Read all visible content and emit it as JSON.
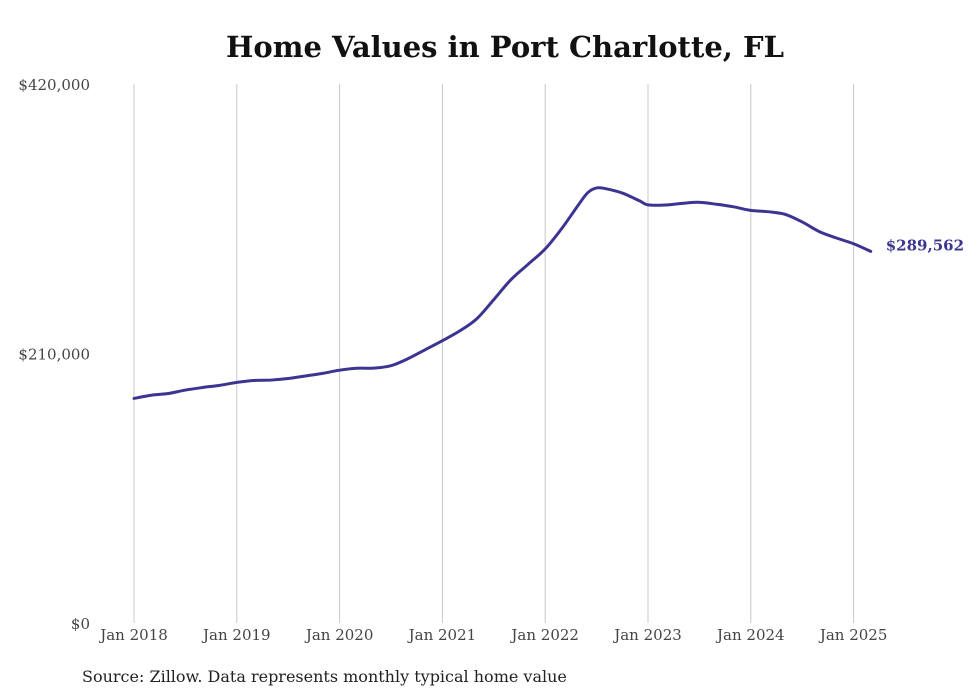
{
  "chart_data": {
    "type": "line",
    "title": "Home Values in Port Charlotte, FL",
    "xlabel": "",
    "ylabel": "",
    "ylim": [
      0,
      420000
    ],
    "y_ticks": [
      {
        "value": 0,
        "label": "$0"
      },
      {
        "value": 210000,
        "label": "$210,000"
      },
      {
        "value": 420000,
        "label": "$420,000"
      }
    ],
    "x_ticks": [
      {
        "value": "2018-01",
        "label": "Jan 2018"
      },
      {
        "value": "2019-01",
        "label": "Jan 2019"
      },
      {
        "value": "2020-01",
        "label": "Jan 2020"
      },
      {
        "value": "2021-01",
        "label": "Jan 2021"
      },
      {
        "value": "2022-01",
        "label": "Jan 2022"
      },
      {
        "value": "2023-01",
        "label": "Jan 2023"
      },
      {
        "value": "2024-01",
        "label": "Jan 2024"
      },
      {
        "value": "2025-01",
        "label": "Jan 2025"
      }
    ],
    "grid": {
      "vertical": true,
      "horizontal": false
    },
    "series": [
      {
        "color": "#3b3591",
        "points": [
          [
            "2018-01",
            175000
          ],
          [
            "2018-03",
            177500
          ],
          [
            "2018-05",
            178800
          ],
          [
            "2018-07",
            181500
          ],
          [
            "2018-09",
            183500
          ],
          [
            "2018-11",
            185200
          ],
          [
            "2019-01",
            187500
          ],
          [
            "2019-03",
            189000
          ],
          [
            "2019-05",
            189300
          ],
          [
            "2019-07",
            190500
          ],
          [
            "2019-09",
            192500
          ],
          [
            "2019-11",
            194500
          ],
          [
            "2020-01",
            197000
          ],
          [
            "2020-03",
            198500
          ],
          [
            "2020-05",
            198600
          ],
          [
            "2020-07",
            200500
          ],
          [
            "2020-09",
            206000
          ],
          [
            "2020-11",
            213000
          ],
          [
            "2021-01",
            220000
          ],
          [
            "2021-03",
            227500
          ],
          [
            "2021-05",
            237000
          ],
          [
            "2021-07",
            252000
          ],
          [
            "2021-09",
            267500
          ],
          [
            "2021-11",
            279500
          ],
          [
            "2022-01",
            291500
          ],
          [
            "2022-03",
            308000
          ],
          [
            "2022-05",
            327000
          ],
          [
            "2022-06",
            335500
          ],
          [
            "2022-07",
            339000
          ],
          [
            "2022-08",
            338500
          ],
          [
            "2022-10",
            335000
          ],
          [
            "2022-12",
            329000
          ],
          [
            "2023-01",
            325800
          ],
          [
            "2023-03",
            325700
          ],
          [
            "2023-05",
            327000
          ],
          [
            "2023-07",
            327800
          ],
          [
            "2023-09",
            326300
          ],
          [
            "2023-11",
            324300
          ],
          [
            "2024-01",
            321500
          ],
          [
            "2024-03",
            320500
          ],
          [
            "2024-05",
            318500
          ],
          [
            "2024-07",
            312500
          ],
          [
            "2024-09",
            305000
          ],
          [
            "2024-11",
            300000
          ],
          [
            "2025-01",
            295500
          ],
          [
            "2025-03",
            289562
          ]
        ]
      }
    ],
    "end_label": {
      "text": "$289,562",
      "color": "#3b3591"
    }
  },
  "source_note": "Source: Zillow. Data represents monthly typical home value"
}
